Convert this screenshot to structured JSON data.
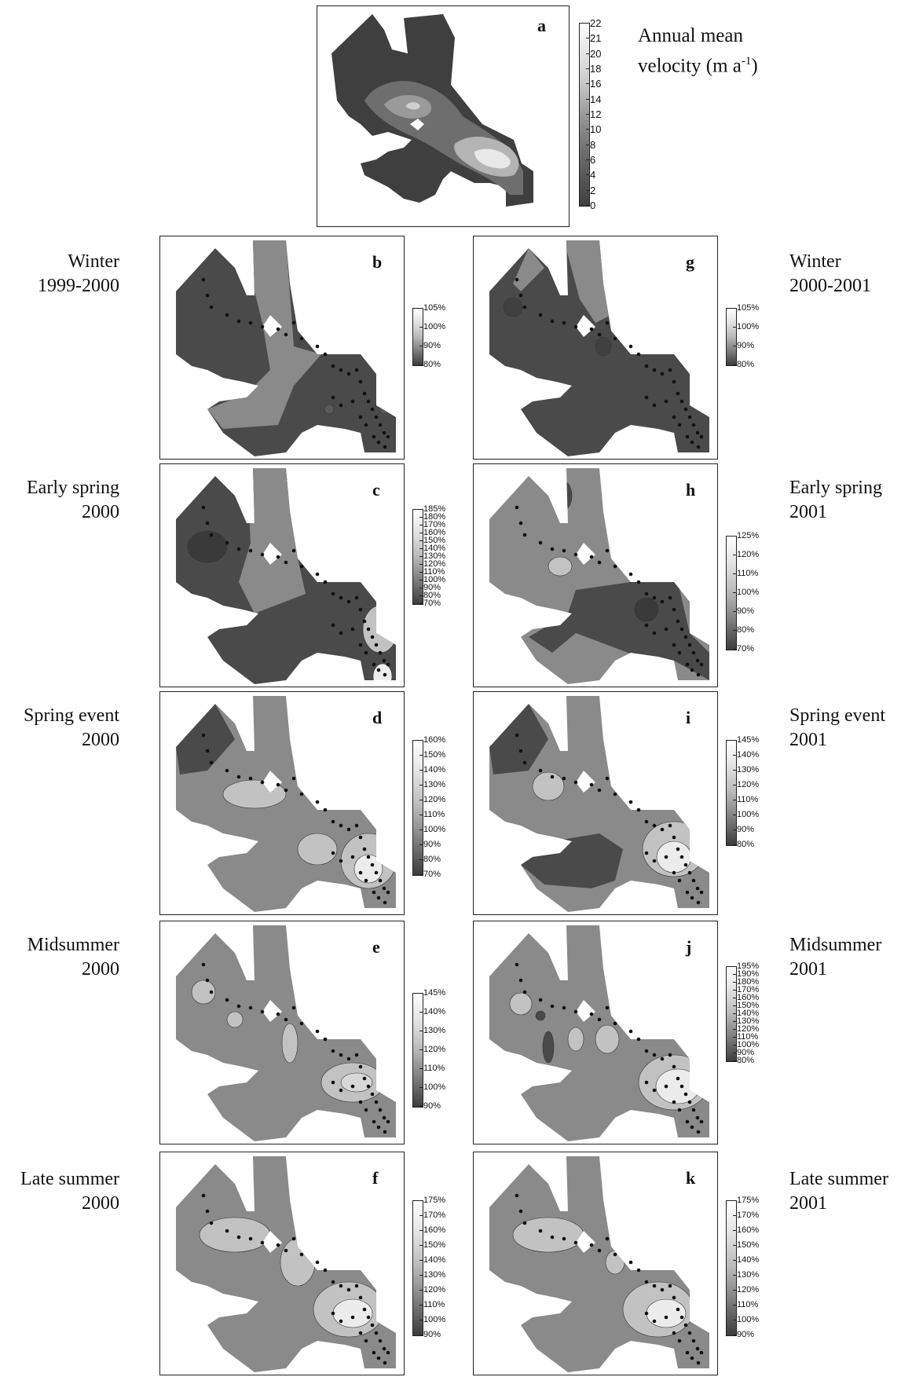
{
  "panel_a": {
    "label": "a",
    "title_line1": "Annual mean",
    "title_line2": "velocity (m a",
    "title_sup": "-1",
    "title_close": ")",
    "ticks": [
      "22",
      "21",
      "20",
      "18",
      "16",
      "14",
      "12",
      "10",
      "8",
      "6",
      "4",
      "2",
      "0"
    ]
  },
  "panels": [
    {
      "id": "b",
      "label": "b",
      "ticks": [
        "105%",
        "100%",
        "90%",
        "80%"
      ]
    },
    {
      "id": "c",
      "label": "c",
      "ticks": [
        "185%",
        "180%",
        "170%",
        "160%",
        "150%",
        "140%",
        "130%",
        "120%",
        "110%",
        "100%",
        "90%",
        "80%",
        "70%"
      ]
    },
    {
      "id": "d",
      "label": "d",
      "ticks": [
        "160%",
        "150%",
        "140%",
        "130%",
        "120%",
        "110%",
        "100%",
        "90%",
        "80%",
        "70%"
      ]
    },
    {
      "id": "e",
      "label": "e",
      "ticks": [
        "145%",
        "140%",
        "130%",
        "120%",
        "110%",
        "100%",
        "90%"
      ]
    },
    {
      "id": "f",
      "label": "f",
      "ticks": [
        "175%",
        "170%",
        "160%",
        "150%",
        "140%",
        "130%",
        "120%",
        "110%",
        "100%",
        "90%"
      ]
    },
    {
      "id": "g",
      "label": "g",
      "ticks": [
        "105%",
        "100%",
        "90%",
        "80%"
      ]
    },
    {
      "id": "h",
      "label": "h",
      "ticks": [
        "125%",
        "120%",
        "110%",
        "100%",
        "90%",
        "80%",
        "70%"
      ]
    },
    {
      "id": "i",
      "label": "i",
      "ticks": [
        "145%",
        "140%",
        "130%",
        "120%",
        "110%",
        "100%",
        "90%",
        "80%"
      ]
    },
    {
      "id": "j",
      "label": "j",
      "ticks": [
        "195%",
        "190%",
        "180%",
        "170%",
        "160%",
        "150%",
        "140%",
        "130%",
        "120%",
        "110%",
        "100%",
        "90%",
        "80%"
      ]
    },
    {
      "id": "k",
      "label": "k",
      "ticks": [
        "175%",
        "170%",
        "160%",
        "150%",
        "140%",
        "130%",
        "120%",
        "110%",
        "100%",
        "90%"
      ]
    }
  ],
  "left_labels": [
    {
      "line1": "Winter",
      "line2": "1999-2000"
    },
    {
      "line1": "Early spring",
      "line2": "2000"
    },
    {
      "line1": "Spring event",
      "line2": "2000"
    },
    {
      "line1": "Midsummer",
      "line2": "2000"
    },
    {
      "line1": "Late summer",
      "line2": "2000"
    }
  ],
  "right_labels": [
    {
      "line1": "Winter",
      "line2": "2000-2001"
    },
    {
      "line1": "Early spring",
      "line2": "2001"
    },
    {
      "line1": "Spring event",
      "line2": "2001"
    },
    {
      "line1": "Midsummer",
      "line2": "2001"
    },
    {
      "line1": "Late summer",
      "line2": "2001"
    }
  ],
  "colors": {
    "dark": "#3f3f3f",
    "mid": "#8a8a8a",
    "light": "#c8c8c8",
    "white": "#f2f2f2",
    "border": "#222222"
  }
}
